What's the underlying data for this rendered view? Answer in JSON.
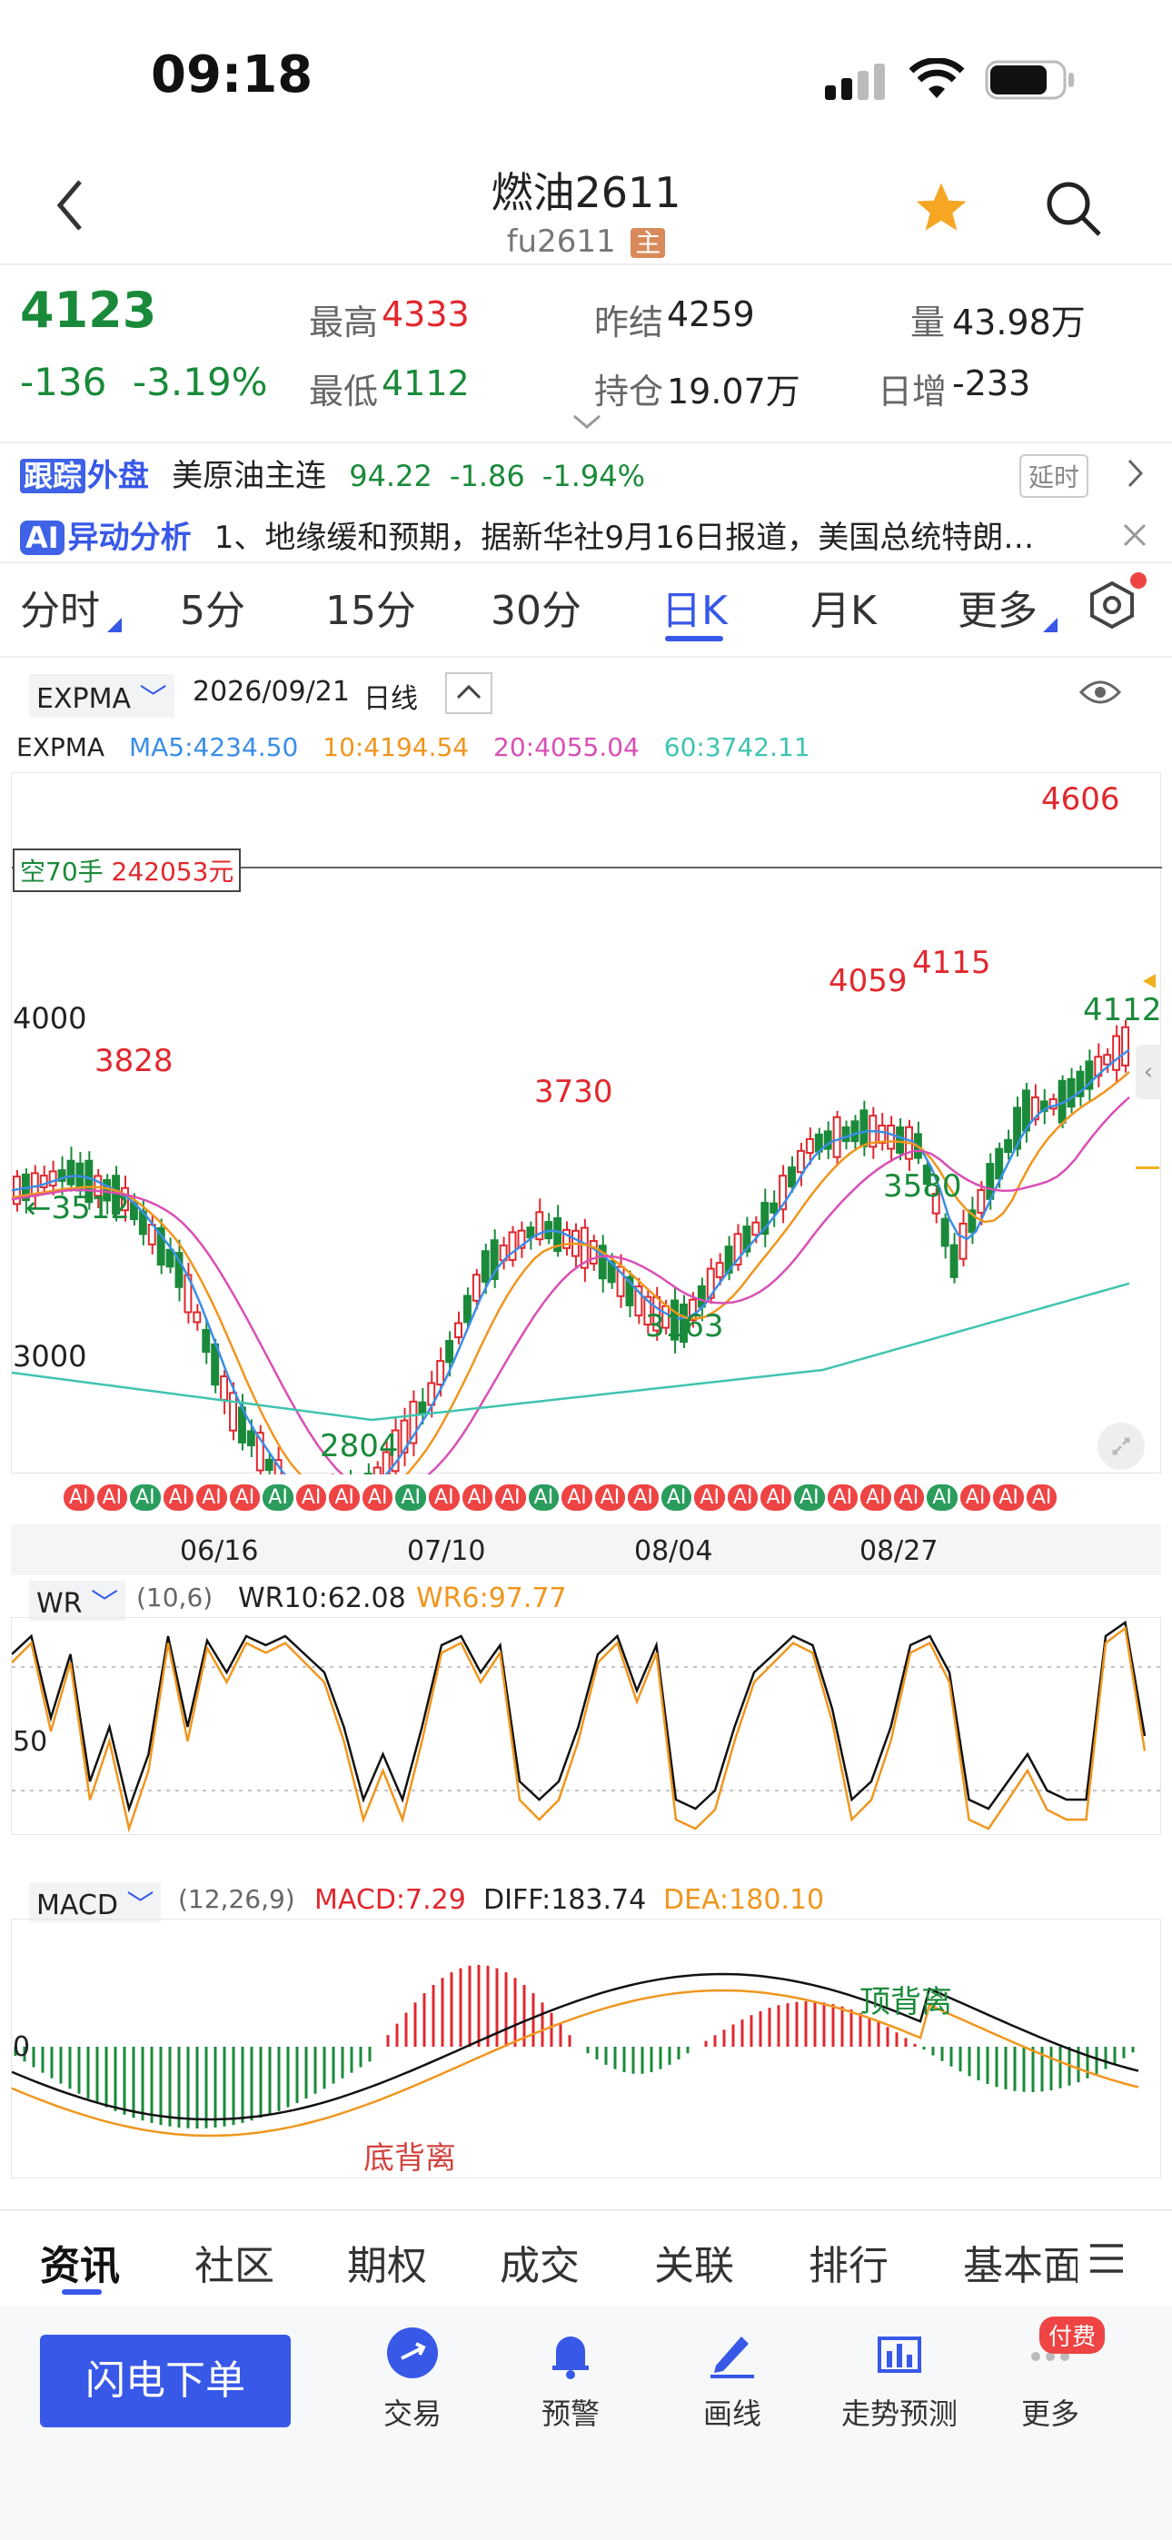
{
  "status": {
    "time": "09:18"
  },
  "header": {
    "title": "燃油2611",
    "code": "fu2611",
    "main_tag": "主"
  },
  "quote": {
    "price": "4123",
    "change": "-136",
    "change_pct": "-3.19%",
    "high_label": "最高",
    "high": "4333",
    "low_label": "最低",
    "low": "4112",
    "prev_label": "昨结",
    "prev": "4259",
    "oi_label": "持仓",
    "oi": "19.07万",
    "vol_label": "量",
    "vol": "43.98万",
    "inc_label": "日增",
    "inc": "-233"
  },
  "ticker": {
    "tag1": "跟踪",
    "tag2": "外盘",
    "name": "美原油主连",
    "price": "94.22",
    "chg": "-1.86",
    "pct": "-1.94%",
    "delay": "延时"
  },
  "ai_bar": {
    "tag": "AI",
    "title": "异动分析",
    "text": "1、地缘缓和预期，据新华社9月16日报道，美国总统特朗…"
  },
  "period_tabs": [
    "分时",
    "5分",
    "15分",
    "30分",
    "日K",
    "月K",
    "更多"
  ],
  "chart_header": {
    "indicator": "EXPMA",
    "date": "2026/09/21",
    "period": "日线"
  },
  "expma_legend": {
    "name": "EXPMA",
    "ma5": "MA5:4234.50",
    "ma10": "10:4194.54",
    "ma20": "20:4055.04",
    "ma60": "60:3742.11"
  },
  "position": {
    "label": "空70手",
    "amount": "242053元"
  },
  "price_labels": {
    "y4000": "4000",
    "y3000": "3000",
    "p3828": "3828",
    "p3512": "←3512",
    "p2804": "2804",
    "p3730": "3730",
    "p3163": "3163",
    "p4059": "4059",
    "p4115": "4115",
    "p3580": "3580",
    "p4606": "4606",
    "p4112": "4112"
  },
  "date_axis": [
    "06/16",
    "07/10",
    "08/04",
    "08/27"
  ],
  "ai_badge_text": "AI",
  "wr": {
    "name": "WR",
    "params": "(10,6)",
    "wr10": "WR10:62.08",
    "wr6": "WR6:97.77",
    "level": "50"
  },
  "macd": {
    "name": "MACD",
    "params": "(12,26,9)",
    "macd": "MACD:7.29",
    "diff_label": "DIFF:",
    "diff": "183.74",
    "dea": "DEA:180.10",
    "zero": "0",
    "bottom_div": "底背离",
    "top_div": "顶背离"
  },
  "bottom_tabs": [
    "资讯",
    "社区",
    "期权",
    "成交",
    "关联",
    "排行",
    "基本面"
  ],
  "toolbar": {
    "order_button": "闪电下单",
    "trade": "交易",
    "alert": "预警",
    "draw": "画线",
    "forecast": "走势预测",
    "more": "更多",
    "paid": "付费"
  },
  "colors": {
    "up": "#e0282e",
    "down": "#1a8a3a",
    "ma5": "#3a8ee6",
    "ma10": "#f0961e",
    "ma20": "#d94fb5",
    "ma60": "#3fc4b0",
    "accent": "#3858e8"
  }
}
